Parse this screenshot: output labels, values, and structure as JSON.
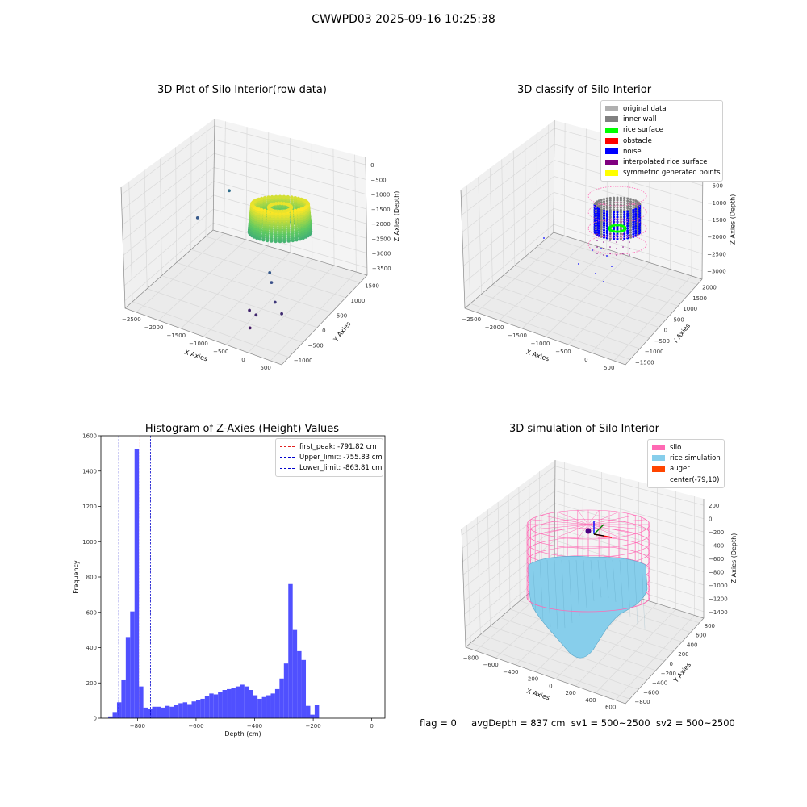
{
  "page_title": "CWWPD03 2025-09-16 10:25:38",
  "status_line": {
    "flag": "flag = 0",
    "avg_depth": "avgDepth = 837 cm",
    "sv1": "sv1 = 500~2500",
    "sv2": "sv2 = 500~2500"
  },
  "colors": {
    "hist_bar": "#5050ff",
    "peak_line": "#e02020",
    "limit_line": "#0000cc",
    "silo": "#ff69b4",
    "rice_simulation": "#87ceeb",
    "auger": "#ff4500",
    "pane": "#f2f2f2",
    "grid": "#d9d9d9"
  },
  "chart_data": [
    {
      "type": "scatter3d",
      "title": "3D Plot of Silo Interior(row data)",
      "xlabel": "X Axies",
      "ylabel": "Y Axies",
      "zlabel": "Z Axies (Depth)",
      "xticks": [
        "−2500",
        "−2000",
        "−1500",
        "−1000",
        "−500",
        "0",
        "500"
      ],
      "yticks": [
        "−1000",
        "−500",
        "0",
        "500",
        "1000",
        "1500"
      ],
      "zticks": [
        "0",
        "−500",
        "−1000",
        "−1500",
        "−2000",
        "−2500",
        "−3000",
        "−3500"
      ],
      "colormap": "viridis (depth)",
      "outliers": [
        {
          "x": -2400,
          "y": 900,
          "z": -2600
        },
        {
          "x": -2200,
          "y": 1600,
          "z": -2300
        },
        {
          "x": -400,
          "y": 100,
          "z": -2600
        },
        {
          "x": -300,
          "y": 0,
          "z": -2750
        },
        {
          "x": -100,
          "y": -200,
          "z": -3050
        },
        {
          "x": 100,
          "y": -300,
          "z": -3200
        },
        {
          "x": -300,
          "y": -500,
          "z": -3250
        },
        {
          "x": -500,
          "y": -400,
          "z": -3300
        },
        {
          "x": -300,
          "y": -700,
          "z": -3450
        }
      ]
    },
    {
      "type": "scatter3d",
      "title": "3D classify of Silo Interior",
      "xlabel": "X Axies",
      "ylabel": "Y Axies",
      "zlabel": "Z Axies (Depth)",
      "xticks": [
        "−2500",
        "−2000",
        "−1500",
        "−1000",
        "−500",
        "0",
        "500"
      ],
      "yticks": [
        "−1500",
        "−1000",
        "−500",
        "0",
        "500",
        "1000",
        "1500",
        "2000"
      ],
      "zticks": [
        "0",
        "−500",
        "−1000",
        "−1500",
        "−2000",
        "−2500",
        "−3000"
      ],
      "legend": [
        {
          "label": "original data",
          "color": "#b0b0b0"
        },
        {
          "label": "inner wall",
          "color": "#808080"
        },
        {
          "label": "rice surface",
          "color": "#00ff00"
        },
        {
          "label": "obstacle",
          "color": "#ff0000"
        },
        {
          "label": "noise",
          "color": "#0000ff"
        },
        {
          "label": "interpolated rice surface",
          "color": "#800080"
        },
        {
          "label": "symmetric generated points",
          "color": "#ffff00"
        }
      ]
    },
    {
      "type": "bar",
      "title": "Histogram of Z-Axies (Height) Values",
      "xlabel": "Depth (cm)",
      "ylabel": "Frequency",
      "xlim": [
        -925,
        45
      ],
      "ylim": [
        0,
        1600
      ],
      "xticks": [
        -800,
        -600,
        -400,
        -200,
        0
      ],
      "xtick_labels": [
        "−800",
        "−600",
        "−400",
        "−200",
        "0"
      ],
      "yticks": [
        0,
        200,
        400,
        600,
        800,
        1000,
        1200,
        1400,
        1600
      ],
      "bin_width": 15,
      "bin_start": -900,
      "values": [
        10,
        35,
        90,
        215,
        460,
        605,
        1525,
        180,
        60,
        55,
        65,
        65,
        60,
        70,
        65,
        75,
        85,
        90,
        80,
        95,
        105,
        110,
        125,
        140,
        135,
        150,
        160,
        165,
        170,
        180,
        190,
        180,
        160,
        130,
        110,
        120,
        130,
        140,
        165,
        225,
        310,
        760,
        500,
        380,
        330,
        70,
        20,
        75
      ],
      "vlines": [
        {
          "label": "first_peak: -791.82 cm",
          "x": -791.82,
          "color": "#e02020"
        },
        {
          "label": "Upper_limit: -755.83 cm",
          "x": -755.83,
          "color": "#0000cc"
        },
        {
          "label": "Lower_limit: -863.81 cm",
          "x": -863.81,
          "color": "#0000cc"
        }
      ],
      "legend_position": "top-right"
    },
    {
      "type": "surface3d",
      "title": "3D simulation of Silo Interior",
      "xlabel": "X Axies",
      "ylabel": "Y Axies",
      "zlabel": "Z Axies (Depth)",
      "xticks": [
        "−800",
        "−600",
        "−400",
        "−200",
        "0",
        "200",
        "400",
        "600"
      ],
      "yticks": [
        "−800",
        "−600",
        "−400",
        "−200",
        "0",
        "200",
        "400",
        "600",
        "800"
      ],
      "zticks": [
        "200",
        "0",
        "−200",
        "−400",
        "−600",
        "−800",
        "−1000",
        "−1200",
        "−1400"
      ],
      "legend": [
        {
          "label": "silo",
          "color": "#ff69b4"
        },
        {
          "label": "rice simulation",
          "color": "#87ceeb"
        },
        {
          "label": "auger",
          "color": "#ff4500"
        },
        {
          "label": "center(-79,10)",
          "color": "#ffffff"
        }
      ]
    }
  ]
}
